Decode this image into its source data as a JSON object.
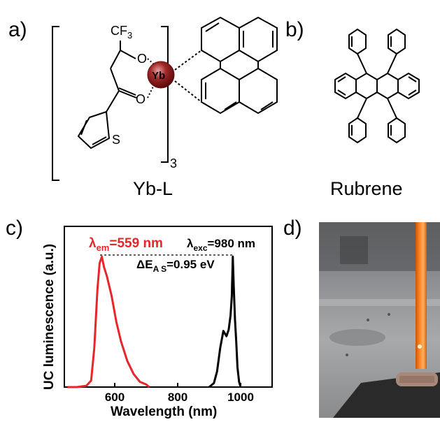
{
  "panels": {
    "a": {
      "label": "a)",
      "caption": "Yb-L"
    },
    "b": {
      "label": "b)",
      "caption": "Rubrene"
    },
    "c": {
      "label": "c)"
    },
    "d": {
      "label": "d)"
    }
  },
  "molecule_a": {
    "cf3": "CF",
    "cf3_sub": "3",
    "o_upper": "O",
    "o_lower": "O",
    "metal": "Yb",
    "sulfur": "S",
    "bracket_sub": "3"
  },
  "chart_data": {
    "type": "line",
    "xlabel": "Wavelength (nm)",
    "ylabel": "UC luminescence (a.u.)",
    "xlim": [
      440,
      1100
    ],
    "ylim": [
      0,
      1.05
    ],
    "xticks": [
      600,
      800,
      1000
    ],
    "grid": false,
    "annotations": {
      "em_prefix": "λ",
      "em_sub": "em",
      "em_value": "=559 nm",
      "exc_prefix": "λ",
      "exc_sub": "exc",
      "exc_value": "=980 nm",
      "delta_prefix": "ΔE",
      "delta_sub": "A S",
      "delta_value": "=0.95 eV"
    },
    "series": [
      {
        "color": "#e8262a",
        "x": [
          450,
          480,
          510,
          525,
          535,
          545,
          552,
          559,
          566,
          575,
          590,
          605,
          620,
          640,
          660,
          680,
          700,
          710
        ],
        "y": [
          0.0,
          0.0,
          0.01,
          0.05,
          0.3,
          0.75,
          0.95,
          1.0,
          0.92,
          0.85,
          0.7,
          0.5,
          0.35,
          0.2,
          0.1,
          0.04,
          0.02,
          0.0
        ]
      },
      {
        "color": "#000000",
        "x": [
          900,
          915,
          925,
          935,
          945,
          955,
          962,
          968,
          972,
          975,
          978,
          982,
          986,
          990,
          995,
          1000
        ],
        "y": [
          0.0,
          0.03,
          0.12,
          0.3,
          0.43,
          0.39,
          0.44,
          0.55,
          0.7,
          1.0,
          0.78,
          0.52,
          0.35,
          0.15,
          0.04,
          0.0
        ]
      }
    ]
  },
  "photo": {
    "description_color": "#ff7a1c"
  }
}
